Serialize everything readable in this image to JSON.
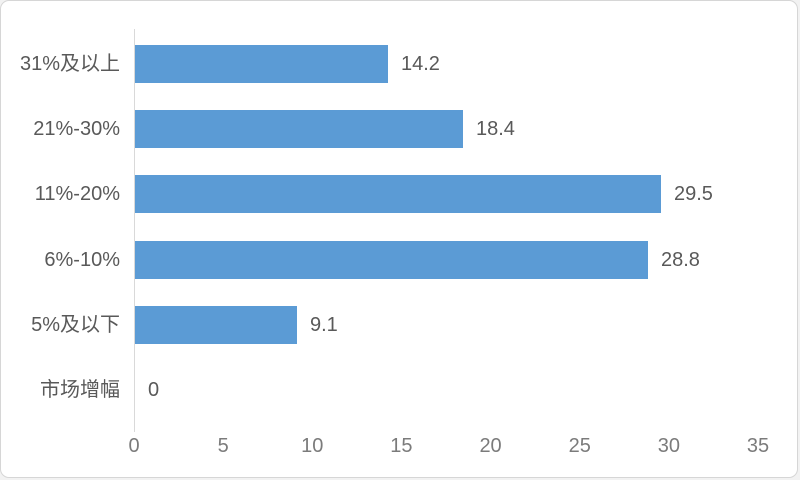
{
  "chart_data": {
    "type": "bar",
    "orientation": "horizontal",
    "title": "",
    "xlabel": "",
    "ylabel": "",
    "categories": [
      "31%及以上",
      "21%-30%",
      "11%-20%",
      "6%-10%",
      "5%及以下",
      "市场增幅"
    ],
    "values": [
      14.2,
      18.4,
      29.5,
      28.8,
      9.1,
      0
    ],
    "data_labels": [
      "14.2",
      "18.4",
      "29.5",
      "28.8",
      "9.1",
      "0"
    ],
    "xlim": [
      0,
      35
    ],
    "x_ticks": [
      0,
      5,
      10,
      15,
      20,
      25,
      30,
      35
    ],
    "grid": false,
    "legend": false,
    "colors": {
      "bar": "#5B9BD5",
      "axis_line": "#d9d9d9",
      "category_label": "#595959",
      "value_label": "#595959",
      "tick_label": "#7b7b7b",
      "card_background": "#ffffff",
      "card_border": "#d6d6d6"
    }
  }
}
